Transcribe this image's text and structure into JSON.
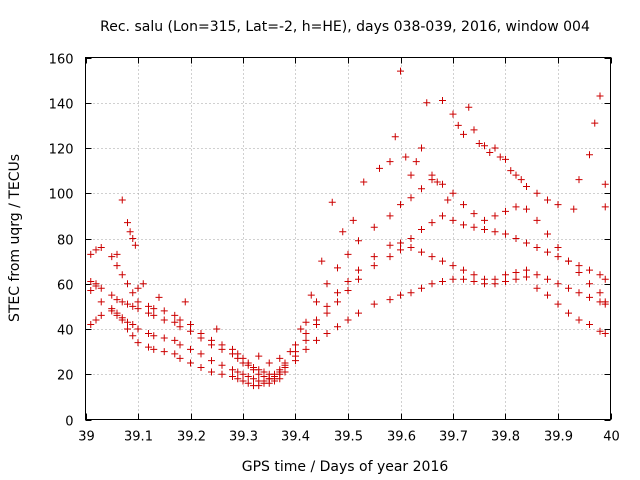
{
  "chart_data": {
    "type": "scatter",
    "title": "Rec. salu (Lon=315, Lat=-2, h=HE), days 038-039, 2016, window 004",
    "xlabel": "GPS time / Days of year 2016",
    "ylabel": "STEC from uqrg / TECUs",
    "xlim": [
      39,
      40
    ],
    "ylim": [
      0,
      160
    ],
    "xticks": [
      "39",
      "39.1",
      "39.2",
      "39.3",
      "39.4",
      "39.5",
      "39.6",
      "39.7",
      "39.8",
      "39.9",
      "40"
    ],
    "yticks": [
      "0",
      "20",
      "40",
      "60",
      "80",
      "100",
      "120",
      "140",
      "160"
    ],
    "grid": true,
    "marker": "plus",
    "color": "#cc0000",
    "series": [
      {
        "x": [
          39.01,
          39.02,
          39.03,
          39.05,
          39.06,
          39.07,
          39.08,
          39.09,
          39.1,
          39.12,
          39.13,
          39.15,
          39.17,
          39.18,
          39.2,
          39.22,
          39.24,
          39.26,
          39.28,
          39.29,
          39.3,
          39.31,
          39.32,
          39.33,
          39.34,
          39.35,
          39.36,
          39.37,
          39.38,
          39.4,
          39.42,
          39.44,
          39.46,
          39.48,
          39.5,
          39.52,
          39.55,
          39.58,
          39.6,
          39.62,
          39.64,
          39.66,
          39.68,
          39.7,
          39.72,
          39.74,
          39.76,
          39.78,
          39.8,
          39.82,
          39.84,
          39.86,
          39.88,
          39.9,
          39.92,
          39.94,
          39.96,
          39.98,
          39.99
        ],
        "y": [
          42,
          44,
          46,
          48,
          46,
          44,
          40,
          37,
          34,
          32,
          31,
          30,
          29,
          27,
          25,
          23,
          21,
          20,
          19,
          18,
          17,
          16,
          15,
          15,
          16,
          16,
          17,
          18,
          21,
          26,
          31,
          35,
          38,
          41,
          44,
          47,
          51,
          53,
          55,
          56,
          58,
          60,
          61,
          62,
          62,
          61,
          60,
          60,
          61,
          62,
          63,
          58,
          55,
          51,
          47,
          44,
          42,
          39,
          38
        ]
      },
      {
        "x": [
          39.01,
          39.02,
          39.03,
          39.05,
          39.06,
          39.07,
          39.08,
          39.09,
          39.1,
          39.12,
          39.13,
          39.15,
          39.17,
          39.18,
          39.2,
          39.22,
          39.24,
          39.26,
          39.28,
          39.29,
          39.3,
          39.31,
          39.32,
          39.33,
          39.34,
          39.35,
          39.36,
          39.37,
          39.38,
          39.4,
          39.42,
          39.44,
          39.46,
          39.48,
          39.5,
          39.52,
          39.55,
          39.58,
          39.6,
          39.62,
          39.64,
          39.66,
          39.68,
          39.7,
          39.72,
          39.74,
          39.76,
          39.78,
          39.8,
          39.82,
          39.84,
          39.86,
          39.88,
          39.9,
          39.92,
          39.94,
          39.96,
          39.98,
          39.99
        ],
        "y": [
          57,
          59,
          52,
          49,
          47,
          45,
          43,
          42,
          40,
          38,
          37,
          36,
          35,
          33,
          31,
          29,
          26,
          24,
          22,
          21,
          20,
          19,
          18,
          17,
          17,
          18,
          19,
          21,
          24,
          30,
          38,
          44,
          50,
          56,
          61,
          66,
          72,
          77,
          78,
          76,
          74,
          72,
          70,
          68,
          66,
          64,
          62,
          62,
          64,
          65,
          66,
          64,
          62,
          60,
          58,
          56,
          54,
          52,
          51
        ]
      },
      {
        "x": [
          39.01,
          39.02,
          39.03,
          39.05,
          39.06,
          39.07,
          39.08,
          39.09,
          39.1,
          39.12,
          39.13,
          39.15,
          39.17,
          39.18,
          39.2,
          39.22,
          39.24,
          39.26,
          39.28,
          39.29,
          39.3,
          39.31,
          39.32,
          39.33,
          39.34,
          39.35,
          39.36,
          39.37,
          39.38,
          39.4,
          39.42,
          39.44,
          39.46,
          39.48,
          39.5,
          39.52,
          39.55,
          39.58,
          39.6,
          39.62,
          39.64,
          39.66,
          39.68,
          39.7,
          39.72,
          39.74,
          39.76,
          39.78,
          39.8,
          39.82,
          39.84,
          39.86,
          39.88,
          39.9,
          39.92,
          39.94,
          39.96,
          39.98,
          39.99
        ],
        "y": [
          73,
          75,
          76,
          72,
          68,
          64,
          60,
          56,
          52,
          50,
          49,
          48,
          46,
          44,
          42,
          38,
          35,
          33,
          31,
          29,
          27,
          25,
          23,
          22,
          21,
          20,
          20,
          22,
          25,
          33,
          43,
          52,
          60,
          67,
          73,
          79,
          85,
          90,
          95,
          98,
          102,
          106,
          104,
          100,
          95,
          91,
          88,
          90,
          92,
          94,
          93,
          88,
          82,
          76,
          70,
          65,
          60,
          56,
          52
        ]
      },
      {
        "x": [
          39.01,
          39.02,
          39.03,
          39.05,
          39.06,
          39.07,
          39.08,
          39.09,
          39.1,
          39.12,
          39.13,
          39.15,
          39.17,
          39.18,
          39.2,
          39.22,
          39.24,
          39.26,
          39.28,
          39.29,
          39.3,
          39.31,
          39.32,
          39.33,
          39.34,
          39.35,
          39.36,
          39.37,
          39.38,
          39.4,
          39.42,
          39.44,
          39.46,
          39.48,
          39.5,
          39.52,
          39.55,
          39.58,
          39.6,
          39.62,
          39.64,
          39.66,
          39.68,
          39.7,
          39.72,
          39.74,
          39.76,
          39.78,
          39.8,
          39.82,
          39.84,
          39.86,
          39.88,
          39.9,
          39.92,
          39.94,
          39.96,
          39.98,
          39.99
        ],
        "y": [
          61,
          60,
          58,
          55,
          53,
          52,
          51,
          50,
          49,
          47,
          46,
          44,
          43,
          41,
          39,
          36,
          33,
          31,
          29,
          27,
          25,
          24,
          22,
          20,
          19,
          18,
          18,
          20,
          23,
          28,
          35,
          42,
          47,
          52,
          57,
          62,
          68,
          72,
          75,
          80,
          84,
          87,
          90,
          88,
          86,
          85,
          84,
          83,
          82,
          80,
          78,
          76,
          74,
          72,
          70,
          68,
          66,
          64,
          62
        ]
      },
      {
        "x": [
          39.06,
          39.07,
          39.08,
          39.085,
          39.09,
          39.095,
          39.1,
          39.11,
          39.14,
          39.19,
          39.25,
          39.33,
          39.35,
          39.37,
          39.39,
          39.41,
          39.43,
          39.45,
          39.47,
          39.49,
          39.51,
          39.53,
          39.56,
          39.58,
          39.59,
          39.6,
          39.61,
          39.62,
          39.63,
          39.64,
          39.65,
          39.66,
          39.67,
          39.68,
          39.69,
          39.7,
          39.71,
          39.72,
          39.73,
          39.74,
          39.75,
          39.76,
          39.77,
          39.78,
          39.79,
          39.8,
          39.81,
          39.82,
          39.83,
          39.84,
          39.86,
          39.88,
          39.9,
          39.93,
          39.94,
          39.96,
          39.97,
          39.98,
          39.99,
          39.99
        ],
        "y": [
          73,
          97,
          87,
          83,
          80,
          77,
          58,
          60,
          54,
          52,
          40,
          28,
          25,
          27,
          30,
          40,
          55,
          70,
          96,
          83,
          88,
          105,
          111,
          114,
          125,
          154,
          116,
          108,
          114,
          120,
          140,
          108,
          105,
          141,
          97,
          135,
          130,
          126,
          138,
          128,
          122,
          121,
          118,
          120,
          116,
          115,
          110,
          108,
          106,
          103,
          100,
          97,
          95,
          93,
          106,
          117,
          131,
          143,
          104,
          94
        ]
      }
    ]
  }
}
